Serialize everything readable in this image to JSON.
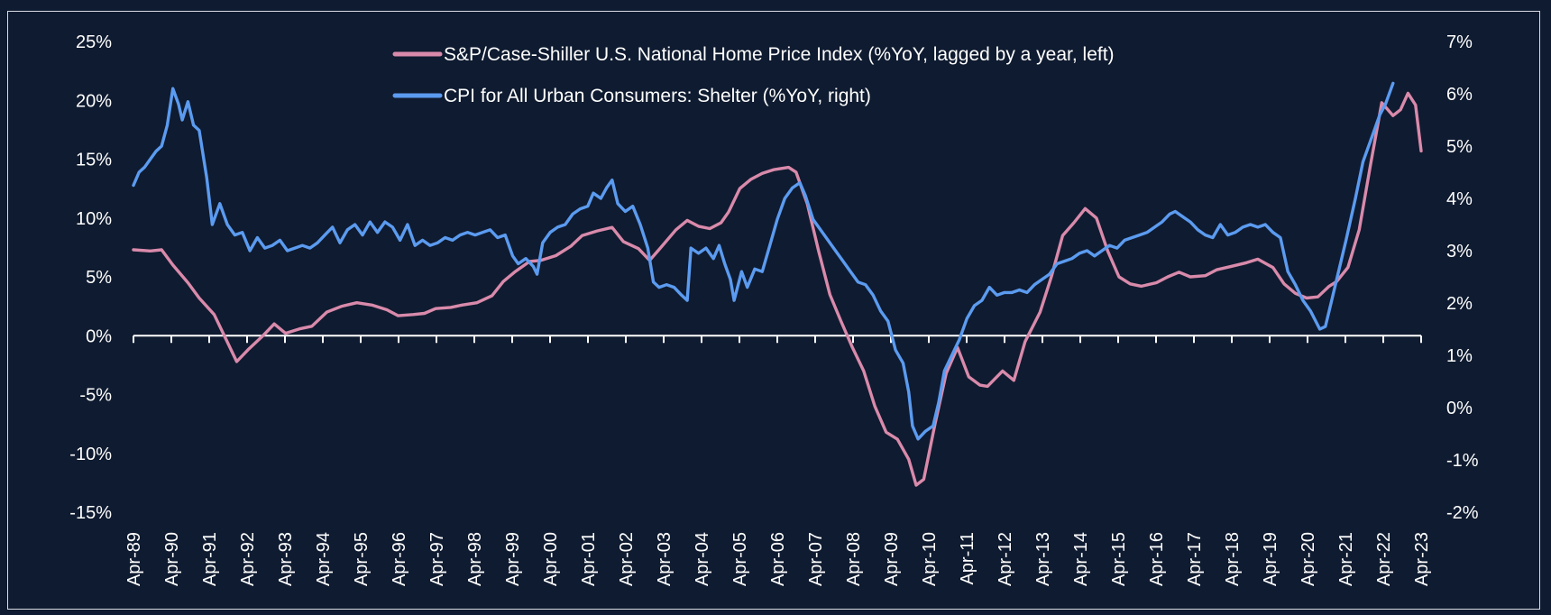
{
  "chart_data": {
    "type": "line",
    "title": "",
    "legend_position": "top-center",
    "grid": false,
    "colors": {
      "background": "#0f1b30",
      "hpi": "#d98aab",
      "shelter": "#5b9bf0",
      "axis": "#ffffff"
    },
    "x_tick_labels": [
      "Apr-89",
      "Apr-90",
      "Apr-91",
      "Apr-92",
      "Apr-93",
      "Apr-94",
      "Apr-95",
      "Apr-96",
      "Apr-97",
      "Apr-98",
      "Apr-99",
      "Apr-00",
      "Apr-01",
      "Apr-02",
      "Apr-03",
      "Apr-04",
      "Apr-05",
      "Apr-06",
      "Apr-07",
      "Apr-08",
      "Apr-09",
      "Apr-10",
      "Apr-11",
      "Apr-12",
      "Apr-13",
      "Apr-14",
      "Apr-15",
      "Apr-16",
      "Apr-17",
      "Apr-18",
      "Apr-19",
      "Apr-20",
      "Apr-21",
      "Apr-22",
      "Apr-23"
    ],
    "y_left": {
      "range": [
        -15,
        25
      ],
      "ticks": [
        "25%",
        "20%",
        "15%",
        "10%",
        "5%",
        "0%",
        "-5%",
        "-10%",
        "-15%"
      ],
      "values": [
        25,
        20,
        15,
        10,
        5,
        0,
        -5,
        -10,
        -15
      ]
    },
    "y_right": {
      "range": [
        -2,
        7
      ],
      "ticks": [
        "7%",
        "6%",
        "5%",
        "4%",
        "3%",
        "2%",
        "1%",
        "0%",
        "-1%",
        "-2%"
      ],
      "values": [
        7,
        6,
        5,
        4,
        3,
        2,
        1,
        0,
        -1,
        -2
      ]
    },
    "series": [
      {
        "name": "S&P/Case-Shiller U.S. National Home Price Index (%YoY, lagged by a year, left)",
        "axis": "left",
        "points": [
          [
            1989.25,
            7.3
          ],
          [
            1989.7,
            7.2
          ],
          [
            1990.0,
            7.3
          ],
          [
            1990.3,
            6.0
          ],
          [
            1990.7,
            4.5
          ],
          [
            1991.0,
            3.2
          ],
          [
            1991.4,
            1.8
          ],
          [
            1991.7,
            -0.2
          ],
          [
            1992.0,
            -2.2
          ],
          [
            1992.3,
            -1.2
          ],
          [
            1992.7,
            0.0
          ],
          [
            1993.0,
            1.0
          ],
          [
            1993.3,
            0.2
          ],
          [
            1993.7,
            0.6
          ],
          [
            1994.0,
            0.8
          ],
          [
            1994.4,
            2.0
          ],
          [
            1994.8,
            2.5
          ],
          [
            1995.2,
            2.8
          ],
          [
            1995.6,
            2.6
          ],
          [
            1996.0,
            2.2
          ],
          [
            1996.3,
            1.7
          ],
          [
            1996.7,
            1.8
          ],
          [
            1997.0,
            1.9
          ],
          [
            1997.3,
            2.3
          ],
          [
            1997.7,
            2.4
          ],
          [
            1998.0,
            2.6
          ],
          [
            1998.4,
            2.8
          ],
          [
            1998.8,
            3.4
          ],
          [
            1999.1,
            4.6
          ],
          [
            1999.4,
            5.4
          ],
          [
            1999.8,
            6.3
          ],
          [
            2000.1,
            6.4
          ],
          [
            2000.5,
            6.8
          ],
          [
            2000.9,
            7.6
          ],
          [
            2001.2,
            8.5
          ],
          [
            2001.6,
            8.9
          ],
          [
            2002.0,
            9.2
          ],
          [
            2002.3,
            8.0
          ],
          [
            2002.7,
            7.4
          ],
          [
            2003.0,
            6.4
          ],
          [
            2003.3,
            7.5
          ],
          [
            2003.7,
            9.0
          ],
          [
            2004.0,
            9.8
          ],
          [
            2004.3,
            9.3
          ],
          [
            2004.6,
            9.1
          ],
          [
            2004.9,
            9.6
          ],
          [
            2005.1,
            10.5
          ],
          [
            2005.4,
            12.5
          ],
          [
            2005.7,
            13.3
          ],
          [
            2006.0,
            13.8
          ],
          [
            2006.3,
            14.1
          ],
          [
            2006.7,
            14.3
          ],
          [
            2006.9,
            13.9
          ],
          [
            2007.2,
            11.2
          ],
          [
            2007.5,
            7.2
          ],
          [
            2007.8,
            3.5
          ],
          [
            2008.1,
            1.2
          ],
          [
            2008.4,
            -1.0
          ],
          [
            2008.7,
            -3.0
          ],
          [
            2009.0,
            -6.0
          ],
          [
            2009.3,
            -8.2
          ],
          [
            2009.6,
            -8.8
          ],
          [
            2009.9,
            -10.5
          ],
          [
            2010.1,
            -12.7
          ],
          [
            2010.3,
            -12.2
          ],
          [
            2010.6,
            -7.5
          ],
          [
            2010.9,
            -3.2
          ],
          [
            2011.2,
            -1.0
          ],
          [
            2011.5,
            -3.5
          ],
          [
            2011.8,
            -4.2
          ],
          [
            2012.0,
            -4.3
          ],
          [
            2012.4,
            -3.0
          ],
          [
            2012.7,
            -3.8
          ],
          [
            2013.0,
            -0.5
          ],
          [
            2013.4,
            2.0
          ],
          [
            2013.7,
            5.0
          ],
          [
            2014.0,
            8.5
          ],
          [
            2014.3,
            9.6
          ],
          [
            2014.6,
            10.8
          ],
          [
            2014.9,
            10.0
          ],
          [
            2015.2,
            7.2
          ],
          [
            2015.5,
            5.0
          ],
          [
            2015.8,
            4.4
          ],
          [
            2016.1,
            4.2
          ],
          [
            2016.5,
            4.5
          ],
          [
            2016.8,
            5.0
          ],
          [
            2017.1,
            5.4
          ],
          [
            2017.4,
            5.0
          ],
          [
            2017.8,
            5.1
          ],
          [
            2018.1,
            5.6
          ],
          [
            2018.5,
            5.9
          ],
          [
            2018.9,
            6.2
          ],
          [
            2019.2,
            6.5
          ],
          [
            2019.6,
            5.8
          ],
          [
            2019.9,
            4.4
          ],
          [
            2020.2,
            3.6
          ],
          [
            2020.5,
            3.2
          ],
          [
            2020.8,
            3.3
          ],
          [
            2021.1,
            4.2
          ],
          [
            2021.3,
            4.6
          ],
          [
            2021.6,
            5.8
          ],
          [
            2021.9,
            9.0
          ],
          [
            2022.2,
            14.5
          ],
          [
            2022.5,
            19.8
          ],
          [
            2022.8,
            18.7
          ],
          [
            2023.0,
            19.2
          ],
          [
            2023.2,
            20.6
          ],
          [
            2023.4,
            19.6
          ],
          [
            2023.55,
            15.7
          ]
        ]
      },
      {
        "name": "CPI for All Urban Consumers: Shelter (%YoY, right)",
        "axis": "right",
        "points": [
          [
            1989.25,
            4.25
          ],
          [
            1989.4,
            4.5
          ],
          [
            1989.55,
            4.6
          ],
          [
            1989.7,
            4.75
          ],
          [
            1989.85,
            4.9
          ],
          [
            1990.0,
            5.0
          ],
          [
            1990.15,
            5.4
          ],
          [
            1990.3,
            6.1
          ],
          [
            1990.45,
            5.8
          ],
          [
            1990.55,
            5.5
          ],
          [
            1990.7,
            5.85
          ],
          [
            1990.85,
            5.4
          ],
          [
            1991.0,
            5.3
          ],
          [
            1991.2,
            4.4
          ],
          [
            1991.35,
            3.5
          ],
          [
            1991.55,
            3.9
          ],
          [
            1991.75,
            3.5
          ],
          [
            1991.95,
            3.3
          ],
          [
            1992.15,
            3.35
          ],
          [
            1992.35,
            3.0
          ],
          [
            1992.55,
            3.25
          ],
          [
            1992.75,
            3.05
          ],
          [
            1992.95,
            3.1
          ],
          [
            1993.15,
            3.2
          ],
          [
            1993.35,
            3.0
          ],
          [
            1993.55,
            3.05
          ],
          [
            1993.75,
            3.1
          ],
          [
            1993.95,
            3.05
          ],
          [
            1994.15,
            3.15
          ],
          [
            1994.35,
            3.3
          ],
          [
            1994.55,
            3.45
          ],
          [
            1994.75,
            3.15
          ],
          [
            1994.95,
            3.4
          ],
          [
            1995.15,
            3.5
          ],
          [
            1995.35,
            3.3
          ],
          [
            1995.55,
            3.55
          ],
          [
            1995.75,
            3.35
          ],
          [
            1995.95,
            3.55
          ],
          [
            1996.15,
            3.45
          ],
          [
            1996.35,
            3.2
          ],
          [
            1996.55,
            3.5
          ],
          [
            1996.75,
            3.1
          ],
          [
            1996.95,
            3.2
          ],
          [
            1997.15,
            3.1
          ],
          [
            1997.35,
            3.15
          ],
          [
            1997.55,
            3.25
          ],
          [
            1997.75,
            3.2
          ],
          [
            1997.95,
            3.3
          ],
          [
            1998.15,
            3.35
          ],
          [
            1998.35,
            3.3
          ],
          [
            1998.55,
            3.35
          ],
          [
            1998.75,
            3.4
          ],
          [
            1998.95,
            3.25
          ],
          [
            1999.15,
            3.3
          ],
          [
            1999.35,
            2.9
          ],
          [
            1999.5,
            2.75
          ],
          [
            1999.7,
            2.85
          ],
          [
            1999.9,
            2.7
          ],
          [
            2000.0,
            2.55
          ],
          [
            2000.15,
            3.15
          ],
          [
            2000.35,
            3.35
          ],
          [
            2000.55,
            3.45
          ],
          [
            2000.75,
            3.5
          ],
          [
            2000.95,
            3.7
          ],
          [
            2001.15,
            3.8
          ],
          [
            2001.35,
            3.85
          ],
          [
            2001.5,
            4.1
          ],
          [
            2001.7,
            4.0
          ],
          [
            2001.85,
            4.2
          ],
          [
            2002.0,
            4.35
          ],
          [
            2002.15,
            3.9
          ],
          [
            2002.35,
            3.75
          ],
          [
            2002.55,
            3.85
          ],
          [
            2002.75,
            3.5
          ],
          [
            2002.95,
            3.05
          ],
          [
            2003.1,
            2.4
          ],
          [
            2003.25,
            2.3
          ],
          [
            2003.45,
            2.35
          ],
          [
            2003.65,
            2.3
          ],
          [
            2003.85,
            2.15
          ],
          [
            2004.0,
            2.05
          ],
          [
            2004.1,
            3.05
          ],
          [
            2004.3,
            2.95
          ],
          [
            2004.5,
            3.05
          ],
          [
            2004.7,
            2.85
          ],
          [
            2004.85,
            3.1
          ],
          [
            2005.0,
            2.75
          ],
          [
            2005.15,
            2.45
          ],
          [
            2005.25,
            2.05
          ],
          [
            2005.45,
            2.6
          ],
          [
            2005.6,
            2.3
          ],
          [
            2005.8,
            2.65
          ],
          [
            2006.0,
            2.6
          ],
          [
            2006.2,
            3.1
          ],
          [
            2006.4,
            3.6
          ],
          [
            2006.6,
            4.0
          ],
          [
            2006.8,
            4.2
          ],
          [
            2007.0,
            4.3
          ],
          [
            2007.15,
            4.05
          ],
          [
            2007.35,
            3.6
          ],
          [
            2007.55,
            3.4
          ],
          [
            2007.75,
            3.2
          ],
          [
            2007.95,
            3.0
          ],
          [
            2008.15,
            2.8
          ],
          [
            2008.35,
            2.6
          ],
          [
            2008.55,
            2.4
          ],
          [
            2008.75,
            2.35
          ],
          [
            2008.95,
            2.15
          ],
          [
            2009.15,
            1.85
          ],
          [
            2009.35,
            1.65
          ],
          [
            2009.55,
            1.1
          ],
          [
            2009.75,
            0.85
          ],
          [
            2009.9,
            0.3
          ],
          [
            2010.0,
            -0.35
          ],
          [
            2010.15,
            -0.6
          ],
          [
            2010.35,
            -0.45
          ],
          [
            2010.55,
            -0.35
          ],
          [
            2010.7,
            0.1
          ],
          [
            2010.85,
            0.7
          ],
          [
            2011.05,
            1.0
          ],
          [
            2011.25,
            1.3
          ],
          [
            2011.45,
            1.7
          ],
          [
            2011.65,
            1.95
          ],
          [
            2011.85,
            2.05
          ],
          [
            2012.05,
            2.3
          ],
          [
            2012.25,
            2.15
          ],
          [
            2012.45,
            2.2
          ],
          [
            2012.65,
            2.2
          ],
          [
            2012.85,
            2.25
          ],
          [
            2013.05,
            2.2
          ],
          [
            2013.25,
            2.35
          ],
          [
            2013.45,
            2.45
          ],
          [
            2013.65,
            2.55
          ],
          [
            2013.85,
            2.75
          ],
          [
            2014.05,
            2.8
          ],
          [
            2014.25,
            2.85
          ],
          [
            2014.45,
            2.95
          ],
          [
            2014.65,
            3.0
          ],
          [
            2014.85,
            2.9
          ],
          [
            2015.05,
            3.0
          ],
          [
            2015.25,
            3.1
          ],
          [
            2015.45,
            3.05
          ],
          [
            2015.65,
            3.2
          ],
          [
            2015.85,
            3.25
          ],
          [
            2016.05,
            3.3
          ],
          [
            2016.25,
            3.35
          ],
          [
            2016.45,
            3.45
          ],
          [
            2016.65,
            3.55
          ],
          [
            2016.85,
            3.7
          ],
          [
            2017.0,
            3.75
          ],
          [
            2017.2,
            3.65
          ],
          [
            2017.4,
            3.55
          ],
          [
            2017.6,
            3.4
          ],
          [
            2017.8,
            3.3
          ],
          [
            2018.0,
            3.25
          ],
          [
            2018.2,
            3.5
          ],
          [
            2018.4,
            3.3
          ],
          [
            2018.6,
            3.35
          ],
          [
            2018.8,
            3.45
          ],
          [
            2019.0,
            3.5
          ],
          [
            2019.2,
            3.45
          ],
          [
            2019.4,
            3.5
          ],
          [
            2019.6,
            3.35
          ],
          [
            2019.8,
            3.25
          ],
          [
            2020.0,
            2.6
          ],
          [
            2020.2,
            2.35
          ],
          [
            2020.4,
            2.05
          ],
          [
            2020.6,
            1.85
          ],
          [
            2020.85,
            1.5
          ],
          [
            2021.0,
            1.55
          ],
          [
            2021.15,
            2.0
          ],
          [
            2021.35,
            2.6
          ],
          [
            2021.55,
            3.2
          ],
          [
            2021.8,
            4.0
          ],
          [
            2022.0,
            4.7
          ],
          [
            2022.25,
            5.2
          ],
          [
            2022.45,
            5.6
          ],
          [
            2022.6,
            5.8
          ],
          [
            2022.8,
            6.2
          ]
        ]
      }
    ]
  }
}
